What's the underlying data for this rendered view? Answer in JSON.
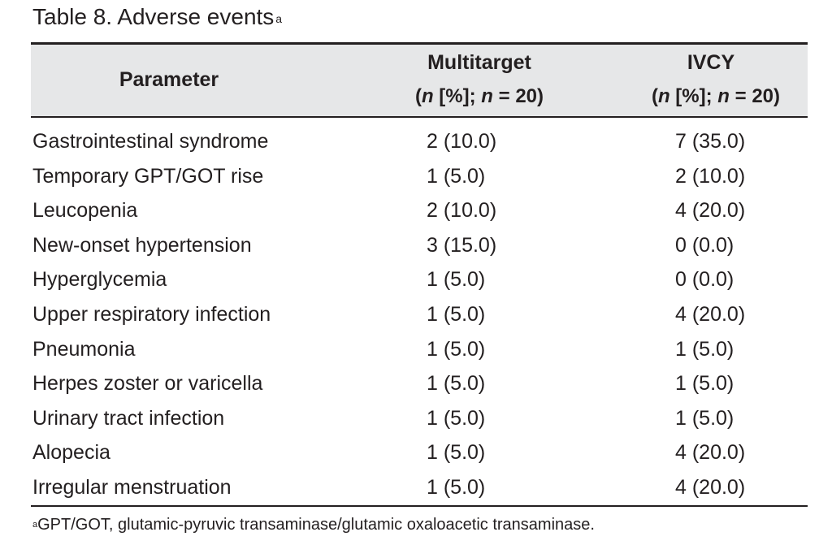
{
  "table": {
    "title": "Table 8.  Adverse events",
    "title_marker": "a",
    "columns": {
      "parameter": "Parameter",
      "multitarget": {
        "name": "Multitarget",
        "sub_open": "(",
        "sub_n1": "n",
        "sub_mid": " [%]; ",
        "sub_n2": "n",
        "sub_close": " = 20)"
      },
      "ivcy": {
        "name": "IVCY",
        "sub_open": "(",
        "sub_n1": "n",
        "sub_mid": " [%]; ",
        "sub_n2": "n",
        "sub_close": " = 20)"
      }
    },
    "rows": [
      {
        "parameter": "Gastrointestinal syndrome",
        "multitarget": "2 (10.0)",
        "ivcy": "7 (35.0)"
      },
      {
        "parameter": "Temporary GPT/GOT rise",
        "multitarget": "1 (5.0)",
        "ivcy": "2 (10.0)"
      },
      {
        "parameter": "Leucopenia",
        "multitarget": "2 (10.0)",
        "ivcy": "4 (20.0)"
      },
      {
        "parameter": "New-onset hypertension",
        "multitarget": "3 (15.0)",
        "ivcy": "0 (0.0)"
      },
      {
        "parameter": "Hyperglycemia",
        "multitarget": "1 (5.0)",
        "ivcy": "0 (0.0)"
      },
      {
        "parameter": "Upper respiratory infection",
        "multitarget": "1 (5.0)",
        "ivcy": "4 (20.0)"
      },
      {
        "parameter": "Pneumonia",
        "multitarget": "1 (5.0)",
        "ivcy": "1 (5.0)"
      },
      {
        "parameter": "Herpes zoster or varicella",
        "multitarget": "1 (5.0)",
        "ivcy": "1 (5.0)"
      },
      {
        "parameter": "Urinary tract infection",
        "multitarget": "1 (5.0)",
        "ivcy": "1 (5.0)"
      },
      {
        "parameter": "Alopecia",
        "multitarget": "1 (5.0)",
        "ivcy": "4 (20.0)"
      },
      {
        "parameter": "Irregular menstruation",
        "multitarget": "1 (5.0)",
        "ivcy": "4 (20.0)"
      }
    ],
    "footnote_marker": "a",
    "footnote": "GPT/GOT, glutamic-pyruvic transaminase/glutamic oxaloacetic transaminase."
  }
}
